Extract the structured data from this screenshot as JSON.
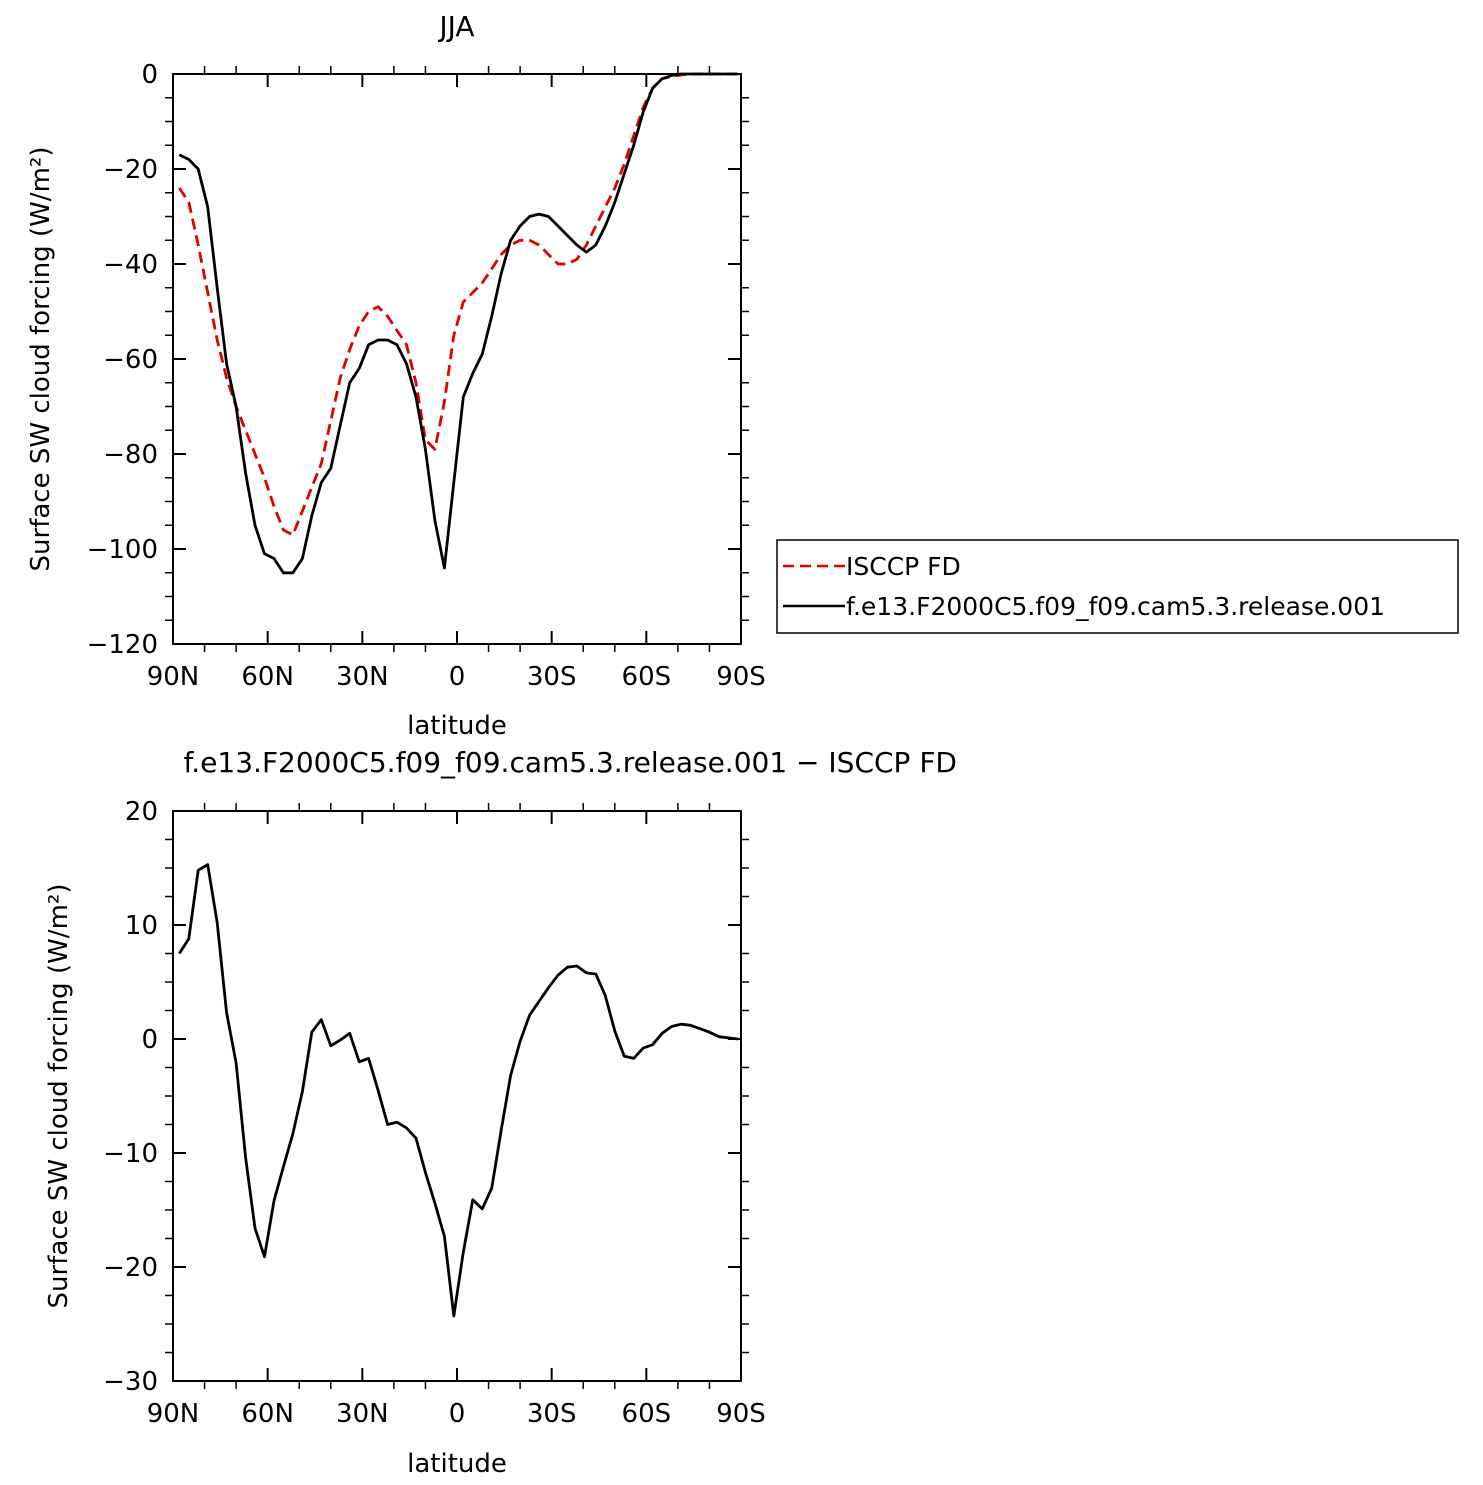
{
  "chart_data": [
    {
      "type": "line",
      "title": "JJA",
      "xlabel": "latitude",
      "ylabel": "Surface SW cloud forcing (W/m²)",
      "xlim": [
        90,
        -90
      ],
      "ylim": [
        -120,
        0
      ],
      "x_ticks": [
        90,
        60,
        30,
        0,
        -30,
        -60,
        -90
      ],
      "x_tick_labels": [
        "90N",
        "60N",
        "30N",
        "0",
        "30S",
        "60S",
        "90S"
      ],
      "y_ticks": [
        0,
        -20,
        -40,
        -60,
        -80,
        -100,
        -120
      ],
      "y_tick_labels": [
        "0",
        "−20",
        "−40",
        "−60",
        "−80",
        "−100",
        "−120"
      ],
      "legend_position": "right",
      "series": [
        {
          "name": "ISCCP FD",
          "color": "#e00000",
          "dash": true,
          "x": [
            88,
            85,
            82,
            79,
            76,
            73,
            70,
            67,
            64,
            61,
            58,
            55,
            52,
            49,
            46,
            43,
            40,
            37,
            34,
            31,
            28,
            25,
            22,
            19,
            16,
            13,
            10,
            7,
            4,
            1,
            -2,
            -5,
            -8,
            -11,
            -14,
            -17,
            -20,
            -23,
            -26,
            -29,
            -32,
            -35,
            -38,
            -41,
            -44,
            -47,
            -50,
            -53,
            -56,
            -59,
            -62,
            -65,
            -68,
            -71,
            -74,
            -77,
            -80,
            -83,
            -86,
            -89
          ],
          "y": [
            -24,
            -27,
            -36,
            -46,
            -56,
            -64,
            -70,
            -75,
            -80,
            -85,
            -91,
            -96,
            -97,
            -92,
            -87,
            -82,
            -73,
            -64,
            -58,
            -53,
            -50,
            -49,
            -51,
            -54,
            -57,
            -65,
            -77,
            -79,
            -69,
            -55,
            -48,
            -46,
            -44,
            -41,
            -38,
            -36,
            -35,
            -35,
            -36,
            -38,
            -40,
            -40,
            -39,
            -36,
            -32,
            -28,
            -24,
            -19,
            -13,
            -7,
            -3,
            -1,
            -0.5,
            -0.2,
            0,
            0,
            0,
            0,
            0,
            0
          ]
        },
        {
          "name": "f.e13.F2000C5.f09_f09.cam5.3.release.001",
          "color": "#000000",
          "dash": false,
          "x": [
            88,
            85,
            82,
            79,
            76,
            73,
            70,
            67,
            64,
            61,
            58,
            55,
            52,
            49,
            46,
            43,
            40,
            37,
            34,
            31,
            28,
            25,
            22,
            19,
            16,
            13,
            10,
            7,
            4,
            1,
            -2,
            -5,
            -8,
            -11,
            -14,
            -17,
            -20,
            -23,
            -26,
            -29,
            -32,
            -35,
            -38,
            -41,
            -44,
            -47,
            -50,
            -53,
            -56,
            -59,
            -62,
            -65,
            -68,
            -71,
            -74,
            -77,
            -80,
            -83,
            -86,
            -89
          ],
          "y": [
            -17,
            -18,
            -20,
            -28,
            -45,
            -61,
            -70,
            -84,
            -95,
            -101,
            -102,
            -105,
            -105,
            -102,
            -93,
            -86,
            -83,
            -74,
            -65,
            -62,
            -57,
            -56,
            -56,
            -57,
            -61,
            -68,
            -79,
            -94,
            -104,
            -86,
            -68,
            -63,
            -59,
            -51,
            -42,
            -35,
            -32,
            -30,
            -29.5,
            -30,
            -32,
            -34,
            -36,
            -37.5,
            -36,
            -32,
            -27,
            -21,
            -15,
            -8,
            -3,
            -1,
            -0.3,
            0,
            0,
            0,
            0,
            0,
            0,
            0
          ]
        }
      ]
    },
    {
      "type": "line",
      "title": "f.e13.F2000C5.f09_f09.cam5.3.release.001 − ISCCP FD",
      "xlabel": "latitude",
      "ylabel": "Surface SW cloud forcing (W/m²)",
      "xlim": [
        90,
        -90
      ],
      "ylim": [
        -30,
        20
      ],
      "x_ticks": [
        90,
        60,
        30,
        0,
        -30,
        -60,
        -90
      ],
      "x_tick_labels": [
        "90N",
        "60N",
        "30N",
        "0",
        "30S",
        "60S",
        "90S"
      ],
      "y_ticks": [
        20,
        10,
        0,
        -10,
        -20,
        -30
      ],
      "y_tick_labels": [
        "20",
        "10",
        "0",
        "−10",
        "−20",
        "−30"
      ],
      "series": [
        {
          "color": "#000000",
          "dash": false,
          "x": [
            88,
            85,
            82,
            79,
            76,
            73,
            70,
            67,
            64,
            61,
            58,
            55,
            52,
            49,
            46,
            43,
            40,
            37,
            34,
            31,
            28,
            25,
            22,
            19,
            16,
            13,
            10,
            7,
            4,
            1,
            -2,
            -5,
            -8,
            -11,
            -14,
            -17,
            -20,
            -23,
            -26,
            -29,
            -32,
            -35,
            -38,
            -41,
            -44,
            -47,
            -50,
            -53,
            -56,
            -59,
            -62,
            -65,
            -68,
            -71,
            -74,
            -77,
            -80,
            -83,
            -86,
            -89
          ],
          "y": [
            7.5,
            8.8,
            14.8,
            15.3,
            10.2,
            2.3,
            -2.1,
            -10.4,
            -16.6,
            -19.1,
            -14.2,
            -11.2,
            -8.3,
            -4.6,
            0.6,
            1.7,
            -0.6,
            -0.1,
            0.5,
            -2.0,
            -1.7,
            -4.5,
            -7.5,
            -7.3,
            -7.8,
            -8.7,
            -11.7,
            -14.4,
            -17.3,
            -24.3,
            -18.7,
            -14.1,
            -14.9,
            -13.1,
            -8.0,
            -3.2,
            -0.2,
            2.1,
            3.3,
            4.5,
            5.6,
            6.3,
            6.4,
            5.8,
            5.7,
            3.8,
            0.7,
            -1.5,
            -1.7,
            -0.8,
            -0.5,
            0.5,
            1.1,
            1.3,
            1.2,
            0.9,
            0.6,
            0.2,
            0.1,
            0
          ]
        }
      ]
    }
  ]
}
